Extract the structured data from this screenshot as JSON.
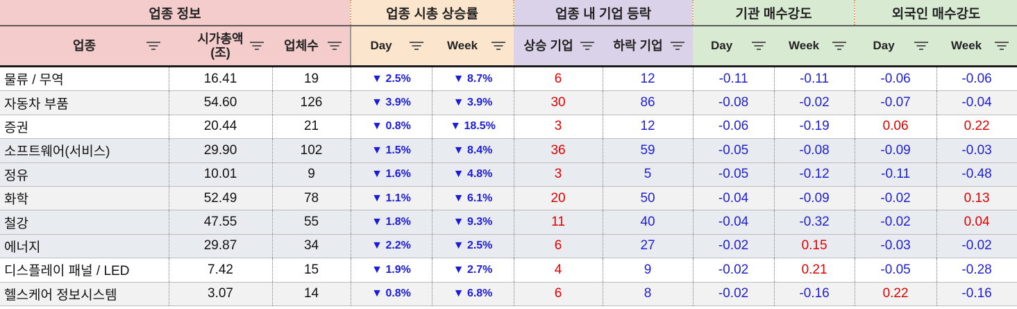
{
  "groups": {
    "g1": "업종 정보",
    "g2": "업종 시총 상승률",
    "g3": "업종 내 기업 등락",
    "g4": "기관 매수강도",
    "g5": "외국인 매수강도"
  },
  "columns": {
    "sector": "업종",
    "mktcap_line1": "시가총액",
    "mktcap_line2": "(조)",
    "count": "업체수",
    "cap_day": "Day",
    "cap_week": "Week",
    "rise": "상승 기업",
    "fall": "하락 기업",
    "inst_day": "Day",
    "inst_week": "Week",
    "for_day": "Day",
    "for_week": "Week"
  },
  "rows": [
    {
      "sector": "물류 / 무역",
      "mktcap": "16.41",
      "count": "19",
      "cap_day": "▼ 2.5%",
      "cap_week": "▼ 8.7%",
      "rise": "6",
      "fall": "12",
      "inst_day": "-0.11",
      "inst_week": "-0.11",
      "for_day": "-0.06",
      "for_week": "-0.06"
    },
    {
      "sector": "자동차 부품",
      "mktcap": "54.60",
      "count": "126",
      "cap_day": "▼ 3.9%",
      "cap_week": "▼ 3.9%",
      "rise": "30",
      "fall": "86",
      "inst_day": "-0.08",
      "inst_week": "-0.02",
      "for_day": "-0.07",
      "for_week": "-0.04"
    },
    {
      "sector": "증권",
      "mktcap": "20.44",
      "count": "21",
      "cap_day": "▼ 0.8%",
      "cap_week": "▼ 18.5%",
      "rise": "3",
      "fall": "12",
      "inst_day": "-0.06",
      "inst_week": "-0.19",
      "for_day": "0.06",
      "for_week": "0.22"
    },
    {
      "sector": "소프트웨어(서비스)",
      "mktcap": "29.90",
      "count": "102",
      "cap_day": "▼ 1.5%",
      "cap_week": "▼ 8.4%",
      "rise": "36",
      "fall": "59",
      "inst_day": "-0.05",
      "inst_week": "-0.08",
      "for_day": "-0.09",
      "for_week": "-0.03"
    },
    {
      "sector": "정유",
      "mktcap": "10.01",
      "count": "9",
      "cap_day": "▼ 1.6%",
      "cap_week": "▼ 4.8%",
      "rise": "3",
      "fall": "5",
      "inst_day": "-0.05",
      "inst_week": "-0.12",
      "for_day": "-0.11",
      "for_week": "-0.48"
    },
    {
      "sector": "화학",
      "mktcap": "52.49",
      "count": "78",
      "cap_day": "▼ 1.1%",
      "cap_week": "▼ 6.1%",
      "rise": "20",
      "fall": "50",
      "inst_day": "-0.04",
      "inst_week": "-0.09",
      "for_day": "-0.02",
      "for_week": "0.13"
    },
    {
      "sector": "철강",
      "mktcap": "47.55",
      "count": "55",
      "cap_day": "▼ 1.8%",
      "cap_week": "▼ 9.3%",
      "rise": "11",
      "fall": "40",
      "inst_day": "-0.04",
      "inst_week": "-0.32",
      "for_day": "-0.02",
      "for_week": "0.04"
    },
    {
      "sector": "에너지",
      "mktcap": "29.87",
      "count": "34",
      "cap_day": "▼ 2.2%",
      "cap_week": "▼ 2.5%",
      "rise": "6",
      "fall": "27",
      "inst_day": "-0.02",
      "inst_week": "0.15",
      "for_day": "-0.03",
      "for_week": "-0.02"
    },
    {
      "sector": "디스플레이 패널 / LED",
      "mktcap": "7.42",
      "count": "15",
      "cap_day": "▼ 1.9%",
      "cap_week": "▼ 2.7%",
      "rise": "4",
      "fall": "9",
      "inst_day": "-0.02",
      "inst_week": "0.21",
      "for_day": "-0.05",
      "for_week": "-0.28"
    },
    {
      "sector": "헬스케어 정보시스템",
      "mktcap": "3.07",
      "count": "14",
      "cap_day": "▼ 0.8%",
      "cap_week": "▼ 6.8%",
      "rise": "6",
      "fall": "8",
      "inst_day": "-0.02",
      "inst_week": "-0.16",
      "for_day": "0.22",
      "for_week": "-0.16"
    }
  ],
  "colors": {
    "positive": "#e00000",
    "negative": "#1f1fd0",
    "group1_bg": "#f4cccc",
    "group2_bg": "#fce5cd",
    "group3_bg": "#d9d2e9",
    "group4_bg": "#d9ead3"
  },
  "icons": {
    "filter": "filter-icon",
    "down": "down-triangle"
  }
}
